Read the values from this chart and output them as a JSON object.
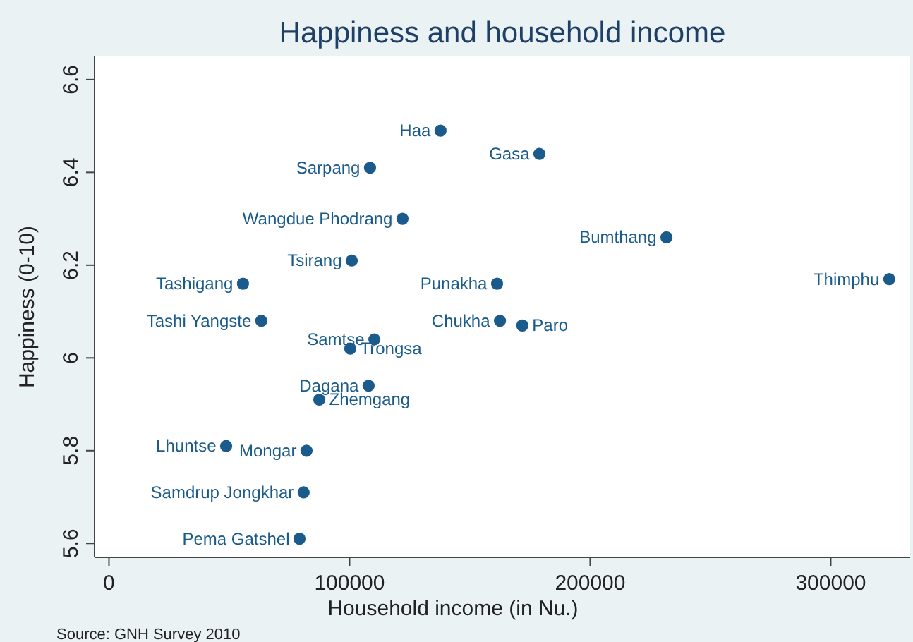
{
  "chart_data": {
    "type": "scatter",
    "title": "Happiness and household income",
    "xlabel": "Household income (in Nu.)",
    "ylabel": "Happiness (0-10)",
    "x": [
      137800,
      178900,
      108500,
      122000,
      231700,
      100900,
      55700,
      161300,
      324300,
      63300,
      162500,
      171800,
      110300,
      100300,
      107900,
      87400,
      48700,
      82100,
      80900,
      79200
    ],
    "series": [
      {
        "color": "#1a5b8c",
        "values": [
          6.49,
          6.44,
          6.41,
          6.3,
          6.26,
          6.21,
          6.16,
          6.16,
          6.17,
          6.08,
          6.08,
          6.07,
          6.04,
          6.02,
          5.94,
          5.91,
          5.81,
          5.8,
          5.71,
          5.61
        ]
      }
    ],
    "annotations": [
      {
        "text": "Haa",
        "x": 137800,
        "y": 6.49
      },
      {
        "text": "Gasa",
        "x": 178900,
        "y": 6.44
      },
      {
        "text": "Sarpang",
        "x": 108500,
        "y": 6.41
      },
      {
        "text": "Wangdue Phodrang",
        "x": 122000,
        "y": 6.3
      },
      {
        "text": "Bumthang",
        "x": 231700,
        "y": 6.26
      },
      {
        "text": "Tsirang",
        "x": 100900,
        "y": 6.21
      },
      {
        "text": "Tashigang",
        "x": 55700,
        "y": 6.16
      },
      {
        "text": "Punakha",
        "x": 161300,
        "y": 6.16
      },
      {
        "text": "Thimphu",
        "x": 324300,
        "y": 6.17
      },
      {
        "text": "Tashi Yangste",
        "x": 63300,
        "y": 6.08
      },
      {
        "text": "Chukha",
        "x": 162500,
        "y": 6.08
      },
      {
        "text": "Paro",
        "x": 171800,
        "y": 6.07
      },
      {
        "text": "Samtse",
        "x": 110300,
        "y": 6.04
      },
      {
        "text": "Trongsa",
        "x": 100300,
        "y": 6.02
      },
      {
        "text": "Dagana",
        "x": 107900,
        "y": 5.94
      },
      {
        "text": "Zhemgang",
        "x": 87400,
        "y": 5.91
      },
      {
        "text": "Lhuntse",
        "x": 48700,
        "y": 5.81
      },
      {
        "text": "Mongar",
        "x": 82100,
        "y": 5.8
      },
      {
        "text": "Samdrup Jongkhar",
        "x": 80900,
        "y": 5.71
      },
      {
        "text": "Pema Gatshel",
        "x": 79200,
        "y": 5.61
      },
      "Source: GNH Survey 2010"
    ],
    "xlim": [
      -6000,
      333000
    ],
    "xticks": [
      0,
      100000,
      200000,
      300000
    ],
    "ylim": [
      5.57,
      6.65
    ],
    "yticks": [
      5.6,
      5.8,
      {
        "value": 6,
        "label": "6"
      },
      6.2,
      6.4,
      6.6
    ],
    "marker": "circle",
    "grid": false
  }
}
